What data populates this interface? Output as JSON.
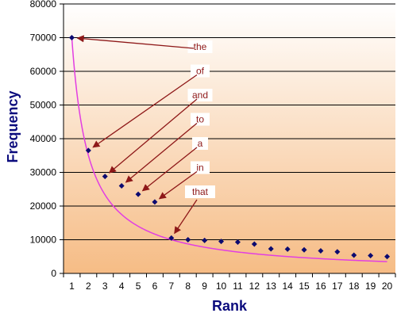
{
  "chart_data": {
    "type": "scatter",
    "title": "",
    "xlabel": "Rank",
    "ylabel": "Frequency",
    "xlim": [
      0.5,
      20.5
    ],
    "ylim": [
      0,
      80000
    ],
    "x_ticks": [
      "1",
      "2",
      "3",
      "4",
      "5",
      "6",
      "7",
      "8",
      "9",
      "10",
      "11",
      "12",
      "13",
      "14",
      "15",
      "16",
      "17",
      "18",
      "19",
      "20"
    ],
    "y_ticks": [
      "0",
      "10000",
      "20000",
      "30000",
      "40000",
      "50000",
      "60000",
      "70000",
      "80000"
    ],
    "grid": "horizontal",
    "series": [
      {
        "marker": "diamond",
        "x": [
          1,
          2,
          3,
          4,
          5,
          6,
          7,
          8,
          9,
          10,
          11,
          12,
          13,
          14,
          15,
          16,
          17,
          18,
          19,
          20
        ],
        "y": [
          70000,
          36500,
          28800,
          26000,
          23500,
          21200,
          10500,
          10000,
          9800,
          9500,
          9300,
          8700,
          7300,
          7200,
          7000,
          6700,
          6400,
          5400,
          5300,
          5000
        ]
      }
    ],
    "fit_curve": {
      "form": "y = 70000 / x"
    },
    "annotations": [
      {
        "label": "the",
        "target_rank": 1
      },
      {
        "label": "of",
        "target_rank": 2
      },
      {
        "label": "and",
        "target_rank": 3
      },
      {
        "label": "to",
        "target_rank": 4
      },
      {
        "label": "a",
        "target_rank": 5
      },
      {
        "label": "in",
        "target_rank": 6
      },
      {
        "label": "that",
        "target_rank": 7
      }
    ],
    "colors": {
      "plot_top": "#ffffff",
      "plot_bottom": "#f6bc85",
      "marker": "#0c0a70",
      "curve": "#e23ee2",
      "arrow": "#8e1818",
      "label_text": "#8e1818",
      "axis_title": "#0b0b7d",
      "grid": "#000000"
    }
  }
}
